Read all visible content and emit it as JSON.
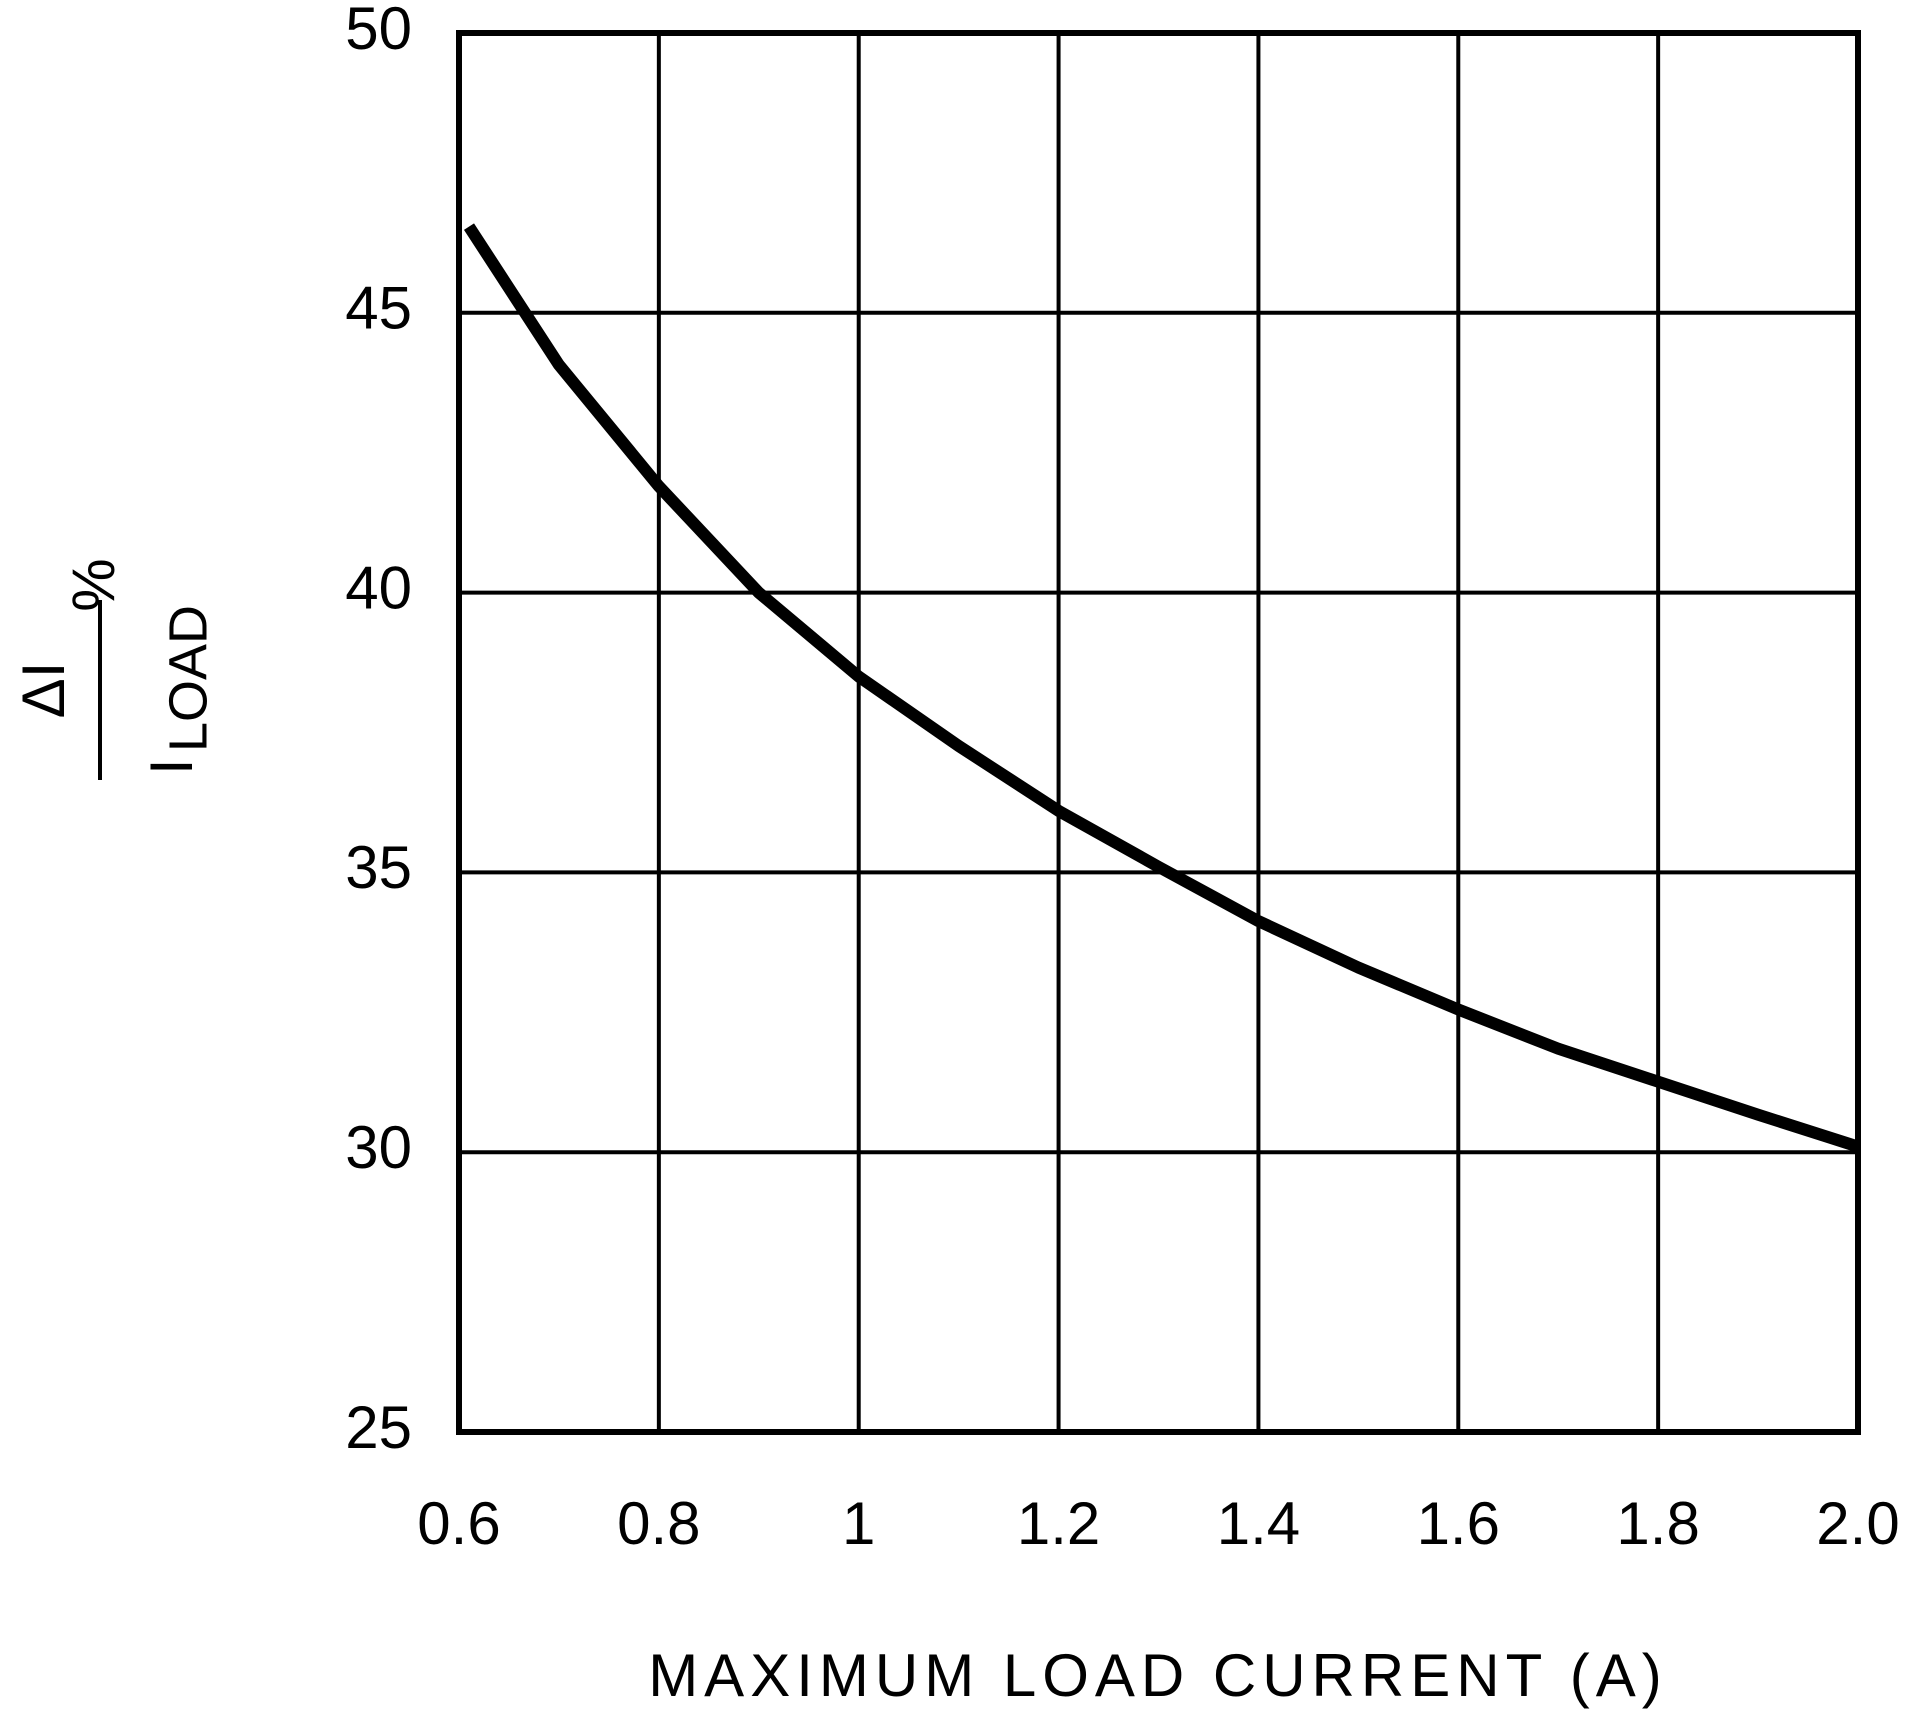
{
  "chart_data": {
    "type": "line",
    "xlabel": "MAXIMUM LOAD CURRENT (A)",
    "ylabel": {
      "numerator": "ΔI",
      "denominator": "I",
      "denominator_sub": "LOAD",
      "unit": "%"
    },
    "x": [
      0.61,
      0.7,
      0.8,
      0.9,
      1.0,
      1.1,
      1.2,
      1.3,
      1.4,
      1.5,
      1.6,
      1.7,
      1.8,
      1.9,
      2.0
    ],
    "values": [
      46.54,
      44.07,
      41.9,
      40.0,
      38.5,
      37.26,
      36.1,
      35.1,
      34.13,
      33.3,
      32.55,
      31.85,
      31.26,
      30.67,
      30.1
    ],
    "color": "#000000",
    "xlim": [
      0.6,
      2.0
    ],
    "ylim": [
      25,
      50
    ],
    "xticks": [
      0.6,
      0.8,
      1,
      1.2,
      1.4,
      1.6,
      1.8,
      {
        "value": 2,
        "label": "2.0"
      }
    ],
    "yticks": [
      25,
      30,
      35,
      40,
      45,
      50
    ],
    "grid": true
  }
}
